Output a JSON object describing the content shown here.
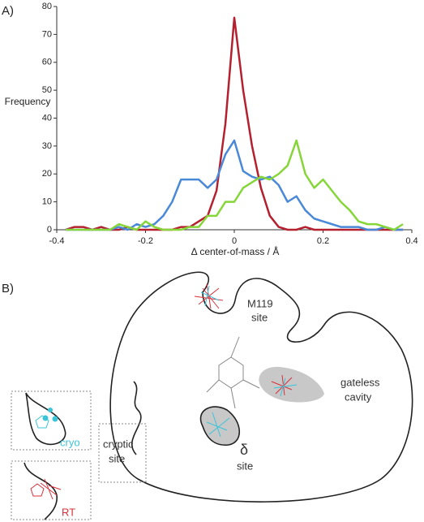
{
  "panels": [
    "A)",
    "B)"
  ],
  "chart_data": {
    "type": "line",
    "ylabel": "Frequency",
    "xlabel": "Δ center-of-mass / Å",
    "x": [
      -0.38,
      -0.36,
      -0.34,
      -0.32,
      -0.3,
      -0.28,
      -0.26,
      -0.24,
      -0.22,
      -0.2,
      -0.18,
      -0.16,
      -0.14,
      -0.12,
      -0.1,
      -0.08,
      -0.06,
      -0.04,
      -0.02,
      0,
      0.02,
      0.04,
      0.06,
      0.08,
      0.1,
      0.12,
      0.14,
      0.16,
      0.18,
      0.2,
      0.22,
      0.24,
      0.26,
      0.28,
      0.3,
      0.32,
      0.34,
      0.36,
      0.38
    ],
    "series": [
      {
        "name": "red",
        "color": "#b5202e",
        "values": [
          0,
          1,
          1,
          0,
          1,
          0,
          0,
          1,
          0,
          0,
          0,
          0,
          0,
          1,
          1,
          3,
          5,
          14,
          38,
          76,
          50,
          30,
          15,
          5,
          1,
          0,
          0,
          1,
          0,
          0,
          0,
          0,
          0,
          0,
          0,
          0,
          0,
          0,
          0
        ]
      },
      {
        "name": "blue",
        "color": "#4a88d8",
        "values": [
          0,
          0,
          0,
          0,
          0,
          0,
          1,
          0,
          2,
          1,
          2,
          5,
          10,
          18,
          18,
          18,
          15,
          18,
          27,
          32,
          21,
          19,
          18,
          19,
          16,
          10,
          12,
          7,
          4,
          3,
          2,
          1,
          1,
          1,
          0,
          0,
          1,
          0,
          0
        ]
      },
      {
        "name": "green",
        "color": "#86d63a",
        "values": [
          0,
          0,
          0,
          0,
          0,
          0,
          2,
          1,
          0,
          3,
          1,
          0,
          0,
          0,
          1,
          1,
          5,
          5,
          10,
          10,
          15,
          17,
          19,
          18,
          20,
          23,
          32,
          20,
          15,
          18,
          14,
          10,
          7,
          3,
          2,
          2,
          1,
          0,
          2
        ]
      }
    ],
    "xlim": [
      -0.4,
      0.4
    ],
    "xticks": [
      -0.4,
      -0.2,
      0,
      0.2,
      0.4
    ],
    "ylim": [
      0,
      80
    ],
    "yticks": [
      0,
      10,
      20,
      30,
      40,
      50,
      60,
      70,
      80
    ]
  },
  "diagram": {
    "labels": {
      "m119": "M119",
      "m119_site": "site",
      "gateless": "gateless",
      "cavity": "cavity",
      "delta": "δ",
      "delta_site": "site",
      "cryptic": "cryptic",
      "cryptic_site": "site",
      "cryo": "cryo",
      "rt": "RT"
    }
  }
}
